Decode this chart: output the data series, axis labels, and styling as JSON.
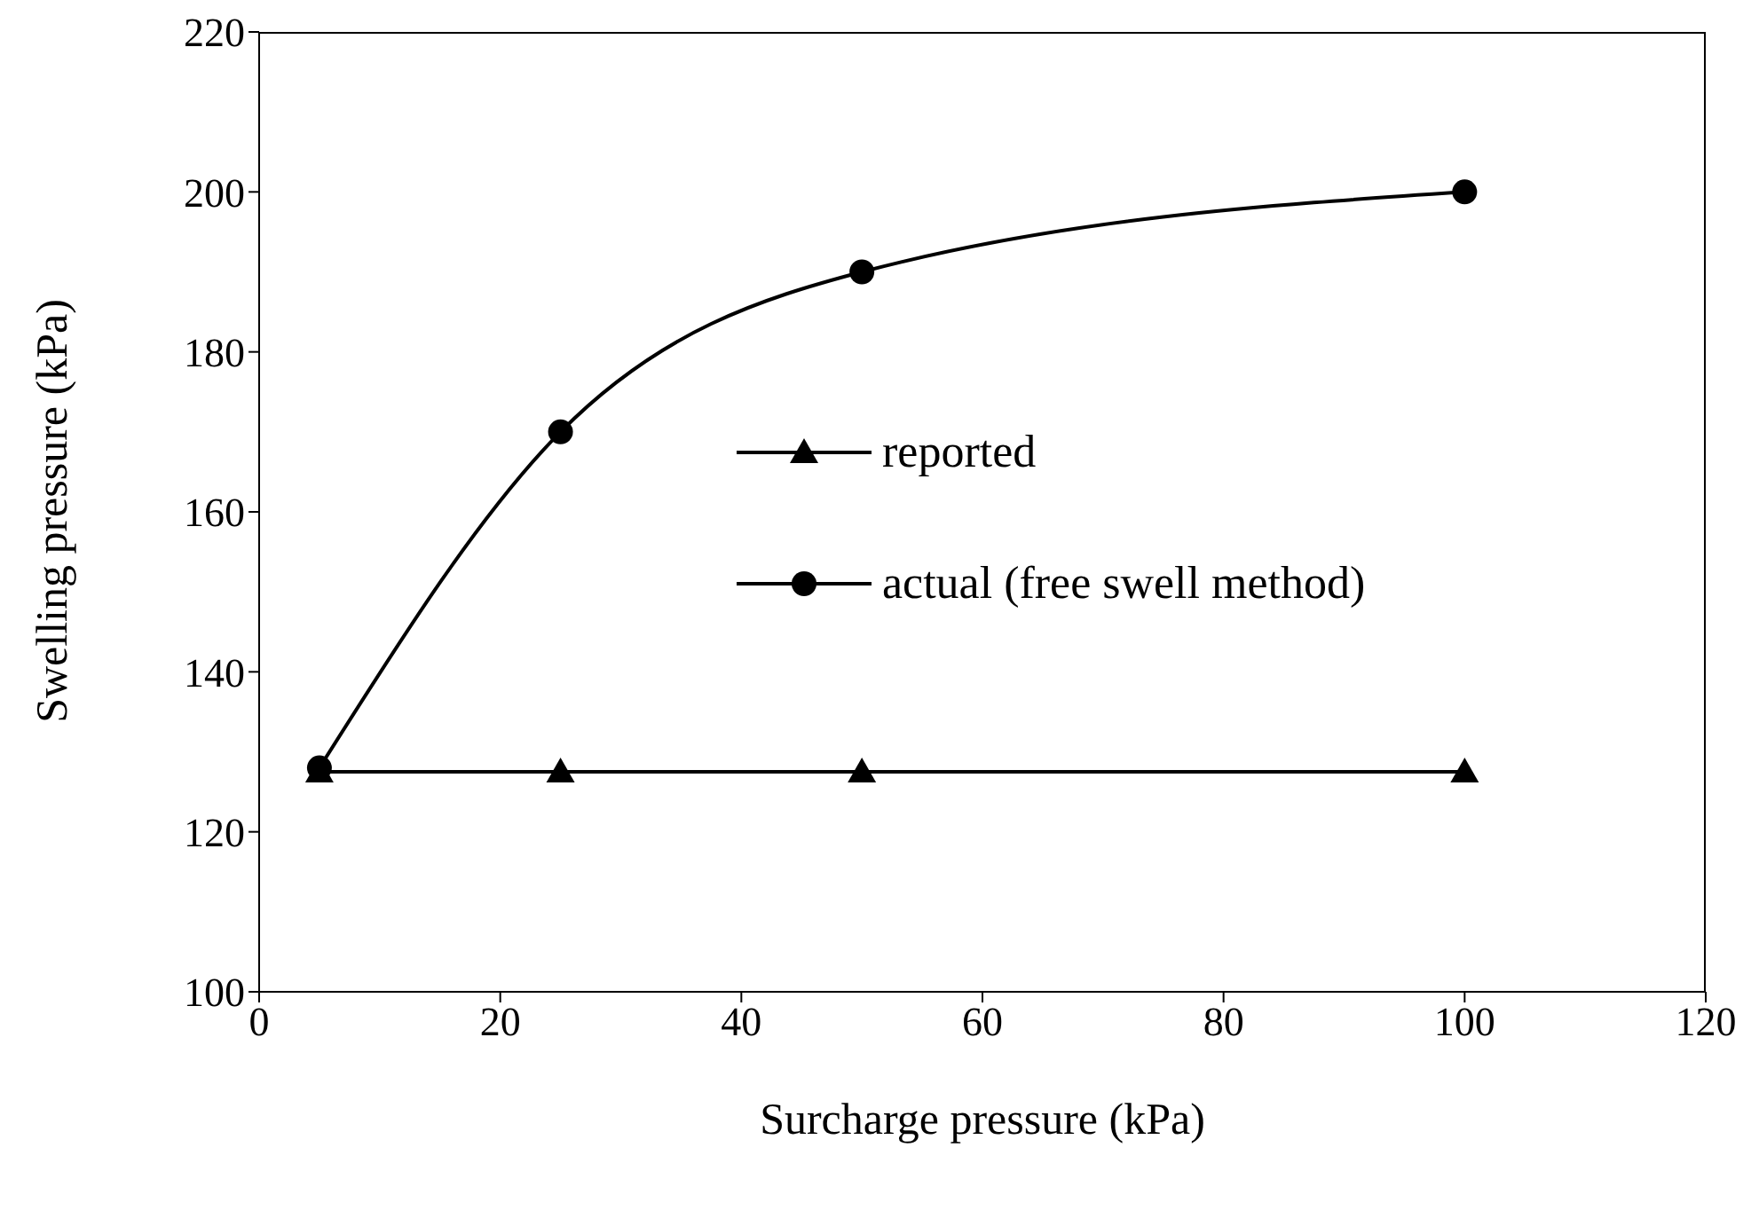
{
  "chart_data": {
    "type": "line",
    "xlabel": "Surcharge pressure (kPa)",
    "ylabel": "Swelling pressure (kPa)",
    "x": [
      5,
      25,
      50,
      100
    ],
    "series": [
      {
        "name": "reported",
        "color": "#000000",
        "marker": "triangle",
        "values": [
          127.5,
          127.5,
          127.5,
          127.5
        ]
      },
      {
        "name": "actual (free swell method)",
        "color": "#000000",
        "marker": "circle",
        "values": [
          128,
          170,
          190,
          200
        ]
      }
    ],
    "xlim": [
      0,
      120
    ],
    "xticks": [
      0,
      20,
      40,
      60,
      80,
      100,
      120
    ],
    "ylim": [
      100,
      220
    ],
    "yticks": [
      100,
      120,
      140,
      160,
      180,
      200,
      220
    ],
    "grid": false,
    "legend": "center"
  }
}
